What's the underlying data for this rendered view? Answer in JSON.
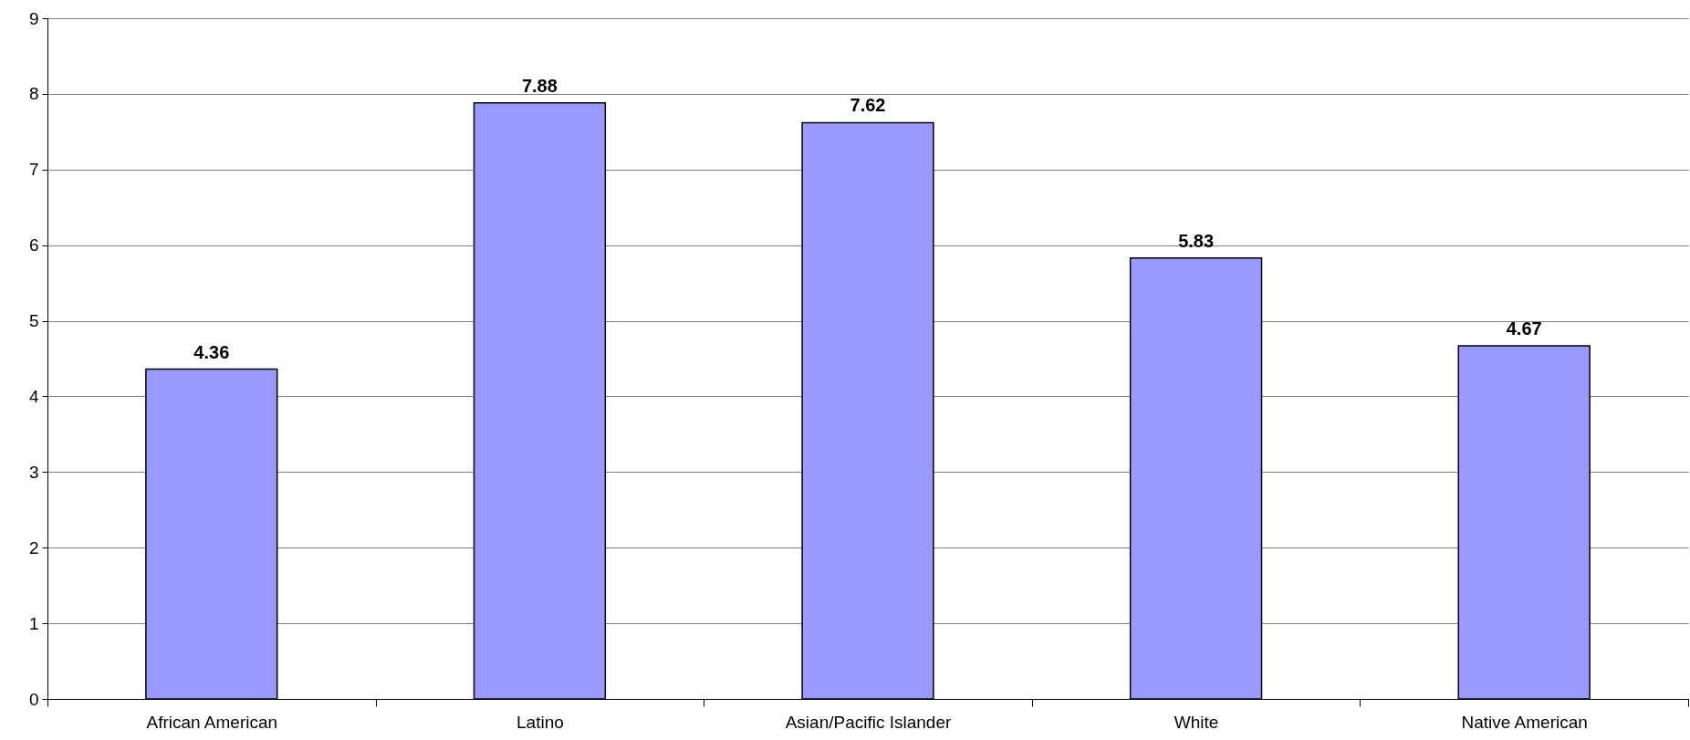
{
  "chart_data": {
    "type": "bar",
    "categories": [
      "African American",
      "Latino",
      "Asian/Pacific Islander",
      "White",
      "Native American"
    ],
    "values": [
      4.36,
      7.88,
      7.62,
      5.83,
      4.67
    ],
    "color": "#9999ff",
    "ylim": [
      0,
      9
    ],
    "yticks": [
      0,
      1,
      2,
      3,
      4,
      5,
      6,
      7,
      8,
      9
    ],
    "grid": "y",
    "data_labels": true
  }
}
